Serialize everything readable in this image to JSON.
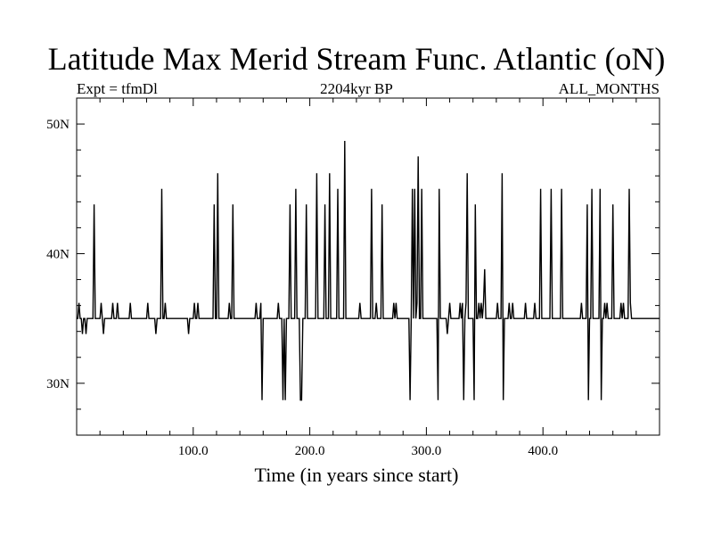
{
  "chart_data": {
    "type": "line",
    "title": "Latitude Max Merid Stream Func. Atlantic (oN)",
    "subtitle_left": "Expt = tfmDl",
    "subtitle_center": "2204kyr BP",
    "subtitle_right": "ALL_MONTHS",
    "xlabel": "Time (in years since start)",
    "ylabel": "",
    "xlim": [
      0,
      500
    ],
    "ylim": [
      26,
      52
    ],
    "x_ticks": [
      100,
      200,
      300,
      400
    ],
    "x_tick_labels": [
      "100.0",
      "200.0",
      "300.0",
      "400.0"
    ],
    "y_ticks": [
      30,
      40,
      50
    ],
    "y_tick_labels": [
      "30N",
      "40N",
      "50N"
    ],
    "baseline": 35,
    "series": [
      {
        "name": "",
        "color": "#000000",
        "points": [
          [
            1,
            35
          ],
          [
            2,
            36.2
          ],
          [
            3,
            35
          ],
          [
            4,
            35
          ],
          [
            5,
            33.8
          ],
          [
            6,
            35
          ],
          [
            7,
            35
          ],
          [
            8,
            33.8
          ],
          [
            9,
            35
          ],
          [
            10,
            35
          ],
          [
            14,
            35
          ],
          [
            15,
            43.8
          ],
          [
            16,
            35
          ],
          [
            20,
            35
          ],
          [
            21,
            36.2
          ],
          [
            22,
            35
          ],
          [
            23,
            33.8
          ],
          [
            24,
            35
          ],
          [
            30,
            35
          ],
          [
            31,
            36.2
          ],
          [
            32,
            35
          ],
          [
            34,
            35
          ],
          [
            35,
            36.2
          ],
          [
            36,
            35
          ],
          [
            45,
            35
          ],
          [
            46,
            36.2
          ],
          [
            47,
            35
          ],
          [
            60,
            35
          ],
          [
            61,
            36.2
          ],
          [
            62,
            35
          ],
          [
            67,
            35
          ],
          [
            68,
            33.8
          ],
          [
            69,
            35
          ],
          [
            72,
            35
          ],
          [
            73,
            45
          ],
          [
            74,
            35
          ],
          [
            75,
            35
          ],
          [
            76,
            36.2
          ],
          [
            77,
            35
          ],
          [
            95,
            35
          ],
          [
            96,
            33.8
          ],
          [
            97,
            35
          ],
          [
            100,
            35
          ],
          [
            101,
            36.2
          ],
          [
            102,
            35
          ],
          [
            103,
            35
          ],
          [
            104,
            36.2
          ],
          [
            105,
            35
          ],
          [
            117,
            35
          ],
          [
            118,
            43.8
          ],
          [
            119,
            35
          ],
          [
            120,
            35
          ],
          [
            121,
            46.2
          ],
          [
            122,
            35
          ],
          [
            130,
            35
          ],
          [
            131,
            36.2
          ],
          [
            132,
            35
          ],
          [
            133,
            35
          ],
          [
            134,
            43.8
          ],
          [
            135,
            35
          ],
          [
            153,
            35
          ],
          [
            154,
            36.2
          ],
          [
            155,
            35
          ],
          [
            157,
            35
          ],
          [
            158,
            36.2
          ],
          [
            159,
            28.7
          ],
          [
            160,
            35
          ],
          [
            172,
            35
          ],
          [
            173,
            36.2
          ],
          [
            174,
            35
          ],
          [
            176,
            35
          ],
          [
            177,
            28.7
          ],
          [
            178,
            35
          ],
          [
            179,
            28.7
          ],
          [
            180,
            35
          ],
          [
            182,
            35
          ],
          [
            183,
            43.8
          ],
          [
            184,
            35
          ],
          [
            187,
            35
          ],
          [
            188,
            45
          ],
          [
            189,
            35
          ],
          [
            191,
            35
          ],
          [
            192,
            28.7
          ],
          [
            193,
            28.7
          ],
          [
            194,
            35
          ],
          [
            196,
            35
          ],
          [
            197,
            43.8
          ],
          [
            198,
            35
          ],
          [
            205,
            35
          ],
          [
            206,
            46.2
          ],
          [
            207,
            35
          ],
          [
            212,
            35
          ],
          [
            213,
            43.8
          ],
          [
            214,
            35
          ],
          [
            216,
            35
          ],
          [
            217,
            46.2
          ],
          [
            218,
            35
          ],
          [
            223,
            35
          ],
          [
            224,
            45
          ],
          [
            225,
            35
          ],
          [
            229,
            35
          ],
          [
            230,
            48.7
          ],
          [
            231,
            35
          ],
          [
            242,
            35
          ],
          [
            243,
            36.2
          ],
          [
            244,
            35
          ],
          [
            252,
            35
          ],
          [
            253,
            45
          ],
          [
            254,
            35
          ],
          [
            256,
            35
          ],
          [
            257,
            36.2
          ],
          [
            258,
            35
          ],
          [
            261,
            35
          ],
          [
            262,
            43.8
          ],
          [
            263,
            35
          ],
          [
            271,
            35
          ],
          [
            272,
            36.2
          ],
          [
            273,
            35
          ],
          [
            274,
            36.2
          ],
          [
            275,
            35
          ],
          [
            285,
            35
          ],
          [
            286,
            28.7
          ],
          [
            287,
            35
          ],
          [
            288,
            45
          ],
          [
            289,
            35
          ],
          [
            290,
            45
          ],
          [
            291,
            35
          ],
          [
            292,
            36.2
          ],
          [
            293,
            47.5
          ],
          [
            294,
            35
          ],
          [
            295,
            35
          ],
          [
            296,
            45
          ],
          [
            297,
            35
          ],
          [
            309,
            35
          ],
          [
            310,
            28.7
          ],
          [
            311,
            45
          ],
          [
            312,
            35
          ],
          [
            317,
            35
          ],
          [
            318,
            33.8
          ],
          [
            319,
            35
          ],
          [
            320,
            36.2
          ],
          [
            321,
            35
          ],
          [
            328,
            35
          ],
          [
            329,
            36.2
          ],
          [
            330,
            35
          ],
          [
            331,
            36.2
          ],
          [
            332,
            28.7
          ],
          [
            333,
            35
          ],
          [
            334,
            36.2
          ],
          [
            335,
            46.2
          ],
          [
            336,
            35
          ],
          [
            340,
            35
          ],
          [
            341,
            28.7
          ],
          [
            342,
            43.8
          ],
          [
            343,
            35
          ],
          [
            344,
            35
          ],
          [
            345,
            36.2
          ],
          [
            346,
            35
          ],
          [
            347,
            36.2
          ],
          [
            348,
            35
          ],
          [
            349,
            36.2
          ],
          [
            350,
            38.8
          ],
          [
            351,
            35
          ],
          [
            360,
            35
          ],
          [
            361,
            36.2
          ],
          [
            362,
            35
          ],
          [
            364,
            35
          ],
          [
            365,
            46.2
          ],
          [
            366,
            28.7
          ],
          [
            367,
            35
          ],
          [
            370,
            35
          ],
          [
            371,
            36.2
          ],
          [
            372,
            35
          ],
          [
            373,
            35
          ],
          [
            374,
            36.2
          ],
          [
            375,
            35
          ],
          [
            384,
            35
          ],
          [
            385,
            36.2
          ],
          [
            386,
            35
          ],
          [
            392,
            35
          ],
          [
            393,
            36.2
          ],
          [
            394,
            35
          ],
          [
            397,
            35
          ],
          [
            398,
            45
          ],
          [
            399,
            35
          ],
          [
            406,
            35
          ],
          [
            407,
            45
          ],
          [
            408,
            35
          ],
          [
            415,
            35
          ],
          [
            416,
            45
          ],
          [
            417,
            35
          ],
          [
            432,
            35
          ],
          [
            433,
            36.2
          ],
          [
            434,
            35
          ],
          [
            437,
            35
          ],
          [
            438,
            43.8
          ],
          [
            439,
            28.7
          ],
          [
            440,
            35
          ],
          [
            441,
            35
          ],
          [
            442,
            45
          ],
          [
            443,
            35
          ],
          [
            448,
            35
          ],
          [
            449,
            45
          ],
          [
            450,
            28.7
          ],
          [
            451,
            35
          ],
          [
            452,
            35
          ],
          [
            453,
            36.2
          ],
          [
            454,
            35
          ],
          [
            455,
            36.2
          ],
          [
            456,
            35
          ],
          [
            459,
            35
          ],
          [
            460,
            43.8
          ],
          [
            461,
            35
          ],
          [
            466,
            35
          ],
          [
            467,
            36.2
          ],
          [
            468,
            35
          ],
          [
            469,
            36.2
          ],
          [
            470,
            35
          ],
          [
            473,
            35
          ],
          [
            474,
            45
          ],
          [
            475,
            36.2
          ],
          [
            476,
            35
          ]
        ]
      }
    ]
  }
}
